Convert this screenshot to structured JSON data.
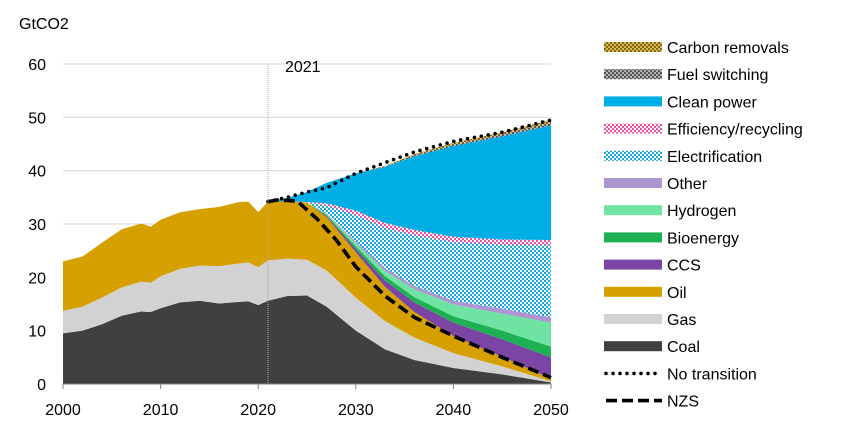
{
  "chart_data": {
    "type": "area",
    "stacked": true,
    "ylabel": "GtCO2",
    "ylim": [
      0,
      60
    ],
    "yticks": [
      0,
      10,
      20,
      30,
      40,
      50,
      60
    ],
    "xlim": [
      2000,
      2050
    ],
    "xticks": [
      2000,
      2010,
      2020,
      2030,
      2040,
      2050
    ],
    "grid": true,
    "legend_position": "right",
    "annotation": {
      "x": 2021,
      "label": "2021"
    },
    "historical": {
      "x": [
        2000,
        2002,
        2004,
        2006,
        2008,
        2009,
        2010,
        2012,
        2014,
        2016,
        2018,
        2019,
        2020,
        2021
      ],
      "series": [
        {
          "name": "Coal",
          "values": [
            9.5,
            10,
            11.2,
            12.8,
            13.6,
            13.5,
            14.2,
            15.3,
            15.6,
            15.1,
            15.4,
            15.5,
            14.8,
            15.6
          ]
        },
        {
          "name": "Gas",
          "values": [
            4.2,
            4.5,
            5,
            5.3,
            5.6,
            5.5,
            6,
            6.3,
            6.6,
            7,
            7.2,
            7.3,
            7.1,
            7.6
          ]
        },
        {
          "name": "Oil",
          "values": [
            9.3,
            9.4,
            10.3,
            10.9,
            10.9,
            10.5,
            10.6,
            10.6,
            10.6,
            11.1,
            11.5,
            11.4,
            10.3,
            11
          ]
        }
      ]
    },
    "projection": {
      "x": [
        2021,
        2023,
        2025,
        2027,
        2030,
        2033,
        2036,
        2040,
        2045,
        2050
      ],
      "series": [
        {
          "name": "Coal",
          "values": [
            15.6,
            16.5,
            16.6,
            14.5,
            10,
            6.5,
            4.5,
            3,
            1.8,
            0.3
          ]
        },
        {
          "name": "Gas",
          "values": [
            7.6,
            7,
            6.7,
            6.8,
            6.2,
            5.3,
            4.2,
            2.8,
            1.5,
            0.2
          ]
        },
        {
          "name": "Oil",
          "values": [
            11,
            10.8,
            10.7,
            10,
            8.5,
            6.4,
            4.8,
            3.2,
            1.8,
            0.5
          ]
        },
        {
          "name": "CCS",
          "values": [
            0,
            0,
            0,
            0.2,
            0.6,
            1.2,
            1.8,
            2.5,
            3.3,
            4
          ]
        },
        {
          "name": "Bioenergy",
          "values": [
            0,
            0,
            0,
            0.2,
            0.5,
            0.8,
            1,
            1.2,
            1.6,
            2
          ]
        },
        {
          "name": "Hydrogen",
          "values": [
            0,
            0,
            0,
            0.2,
            0.6,
            1,
            1.5,
            2.2,
            3.2,
            4.5
          ]
        },
        {
          "name": "Other",
          "values": [
            0,
            0,
            0,
            0.1,
            0.3,
            0.5,
            0.6,
            0.7,
            0.9,
            1
          ]
        },
        {
          "name": "Electrification",
          "values": [
            0,
            0,
            0,
            1.5,
            5,
            7.5,
            9.5,
            11,
            12,
            13.5
          ]
        },
        {
          "name": "Efficiency/recycling",
          "values": [
            0,
            0,
            0.1,
            0.4,
            0.8,
            1,
            1,
            1,
            1,
            1
          ]
        },
        {
          "name": "Clean power",
          "values": [
            0,
            0.6,
            1.9,
            3.8,
            7,
            10.5,
            13.8,
            17,
            19.3,
            21.5
          ]
        },
        {
          "name": "Fuel switching",
          "values": [
            0,
            0,
            0,
            0,
            0,
            0.1,
            0.2,
            0.3,
            0.4,
            0.5
          ]
        },
        {
          "name": "Carbon removals",
          "values": [
            0,
            0,
            0,
            0,
            0,
            0.1,
            0.2,
            0.3,
            0.4,
            0.5
          ]
        }
      ]
    },
    "lines": [
      {
        "name": "No transition",
        "style": "dotted",
        "x": [
          2021,
          2023,
          2025,
          2027,
          2030,
          2033,
          2036,
          2040,
          2045,
          2050
        ],
        "values": [
          34.2,
          35,
          36,
          36.8,
          39.5,
          41.5,
          43.5,
          45.5,
          47.2,
          49.5
        ]
      },
      {
        "name": "NZS",
        "style": "dashed",
        "x": [
          2021,
          2022,
          2024,
          2026,
          2028,
          2030,
          2033,
          2036,
          2040,
          2045,
          2050
        ],
        "values": [
          34.2,
          34.5,
          34.3,
          31,
          27,
          22,
          16.5,
          12.5,
          9,
          5,
          1.2
        ]
      }
    ],
    "legend": [
      {
        "name": "Carbon removals",
        "color": "#d9b84a",
        "pattern": "checker",
        "pattern_color": "#7f6a1f"
      },
      {
        "name": "Fuel switching",
        "color": "#b3b3b3",
        "pattern": "checker",
        "pattern_color": "#555555"
      },
      {
        "name": "Clean power",
        "color": "#00aee6"
      },
      {
        "name": "Efficiency/recycling",
        "color": "#ffffff",
        "pattern": "checker",
        "pattern_color": "#ef4f9d"
      },
      {
        "name": "Electrification",
        "color": "#ffffff",
        "pattern": "checker",
        "pattern_color": "#16a7e0"
      },
      {
        "name": "Other",
        "color": "#ae96d3"
      },
      {
        "name": "Hydrogen",
        "color": "#6ee3a2"
      },
      {
        "name": "Bioenergy",
        "color": "#1db153"
      },
      {
        "name": "CCS",
        "color": "#7a45a4"
      },
      {
        "name": "Oil",
        "color": "#d6a000"
      },
      {
        "name": "Gas",
        "color": "#d2d2d2"
      },
      {
        "name": "Coal",
        "color": "#404040"
      },
      {
        "name": "No transition",
        "line": "dotted",
        "color": "#000000"
      },
      {
        "name": "NZS",
        "line": "dashed",
        "color": "#000000"
      }
    ]
  }
}
